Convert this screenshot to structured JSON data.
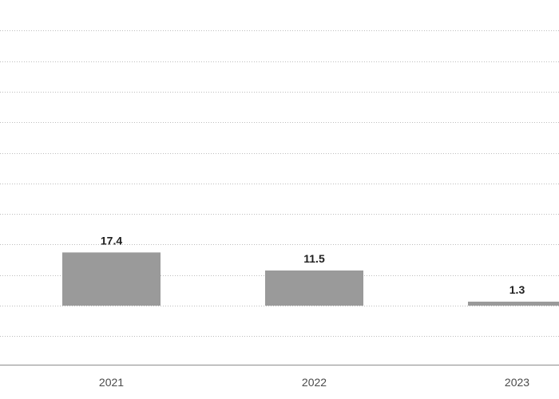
{
  "chart_data": {
    "type": "bar",
    "categories": [
      "2021",
      "2022",
      "2023"
    ],
    "values": [
      17.4,
      11.5,
      1.3
    ],
    "data_labels": [
      "17.4",
      "11.5",
      "1.3"
    ],
    "title": "",
    "xlabel": "",
    "ylabel": "",
    "ylim": [
      -20,
      90
    ],
    "grid": true,
    "bar_color": "#9a9a9a",
    "grid_color": "#bdbdbd",
    "axis_color": "#8c8c8c"
  }
}
